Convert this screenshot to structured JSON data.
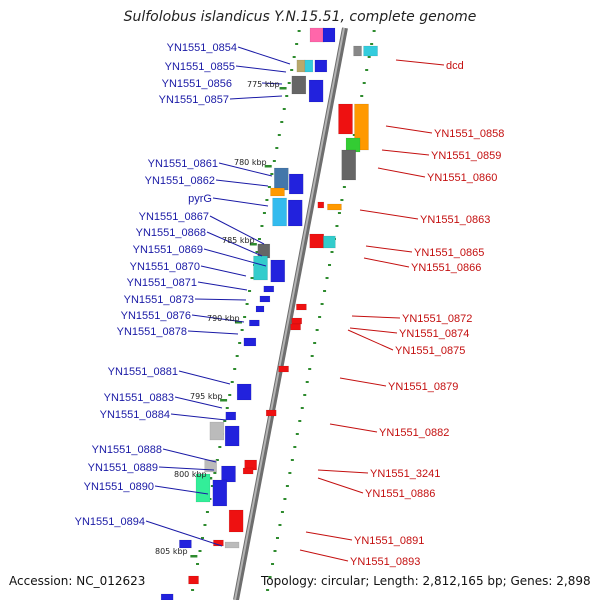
{
  "title": "Sulfolobus islandicus Y.N.15.51, complete genome",
  "accession": "Accession: NC_012623",
  "topology": "Topology: circular; Length: 2,812,165 bp; Genes: 2,898",
  "colors": {
    "forward_label": "#1a1aa6",
    "reverse_label": "#c41010",
    "backbone": "#8c8c8c",
    "ticks": "#2e8b2e"
  },
  "ticks": [
    "775 kbp",
    "780 kbp",
    "785 kbp",
    "790 kbp",
    "795 kbp",
    "800 kbp",
    "805 kbp"
  ],
  "forward_labels": [
    "YN1551_0854",
    "YN1551_0855",
    "YN1551_0856",
    "YN1551_0857",
    "YN1551_0861",
    "YN1551_0862",
    "pyrG",
    "YN1551_0867",
    "YN1551_0868",
    "YN1551_0869",
    "YN1551_0870",
    "YN1551_0871",
    "YN1551_0873",
    "YN1551_0876",
    "YN1551_0878",
    "YN1551_0881",
    "YN1551_0883",
    "YN1551_0884",
    "YN1551_0888",
    "YN1551_0889",
    "YN1551_0890",
    "YN1551_0894"
  ],
  "reverse_labels": [
    "dcd",
    "YN1551_0858",
    "YN1551_0859",
    "YN1551_0860",
    "YN1551_0863",
    "YN1551_0865",
    "YN1551_0866",
    "YN1551_0872",
    "YN1551_0874",
    "YN1551_0875",
    "YN1551_0879",
    "YN1551_0882",
    "YN1551_3241",
    "YN1551_0886",
    "YN1551_0891",
    "YN1551_0893"
  ]
}
